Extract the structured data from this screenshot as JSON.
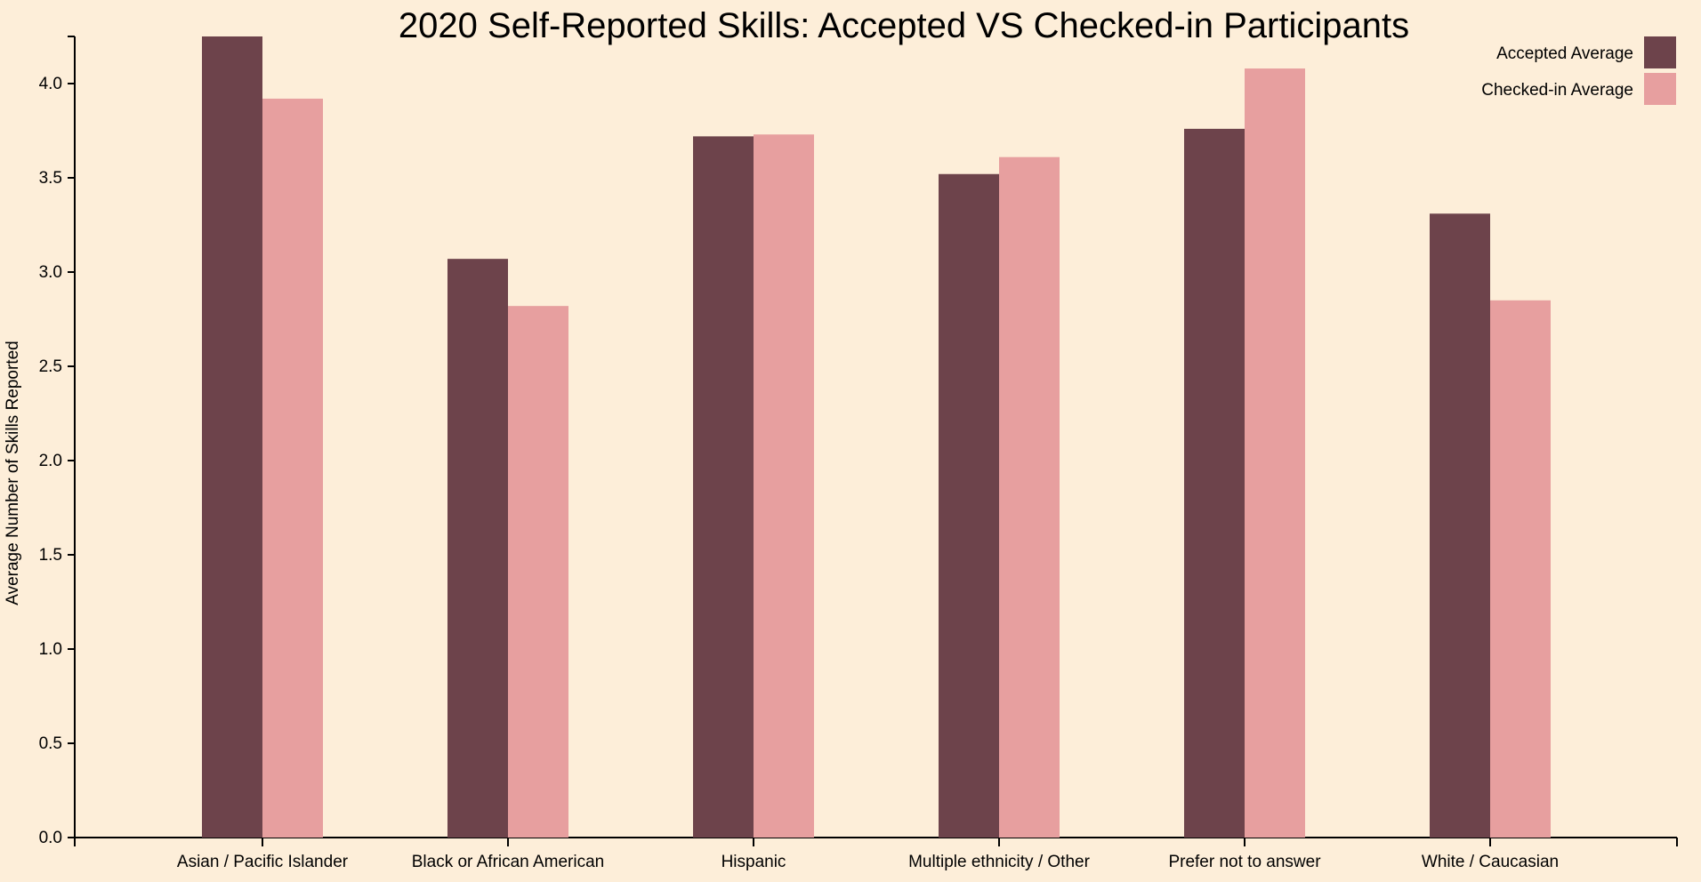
{
  "chart_data": {
    "type": "bar",
    "title": "2020 Self-Reported Skills: Accepted VS Checked-in Participants",
    "xlabel": "",
    "ylabel": "Average Number of Skills Reported",
    "ylim": [
      0,
      4.25
    ],
    "yticks": [
      "0.0",
      "0.5",
      "1.0",
      "1.5",
      "2.0",
      "2.5",
      "3.0",
      "3.5",
      "4.0"
    ],
    "grid": false,
    "legend_position": "top-right",
    "categories": [
      "Asian / Pacific Islander",
      "Black or African American",
      "Hispanic",
      "Multiple ethnicity / Other",
      "Prefer not to answer",
      "White / Caucasian"
    ],
    "series": [
      {
        "name": "Accepted Average",
        "color": "#6d434b",
        "values": [
          4.25,
          3.07,
          3.72,
          3.52,
          3.76,
          3.31
        ]
      },
      {
        "name": "Checked-in Average",
        "color": "#e79f9f",
        "values": [
          3.92,
          2.82,
          3.73,
          3.61,
          4.08,
          2.85
        ]
      }
    ]
  }
}
